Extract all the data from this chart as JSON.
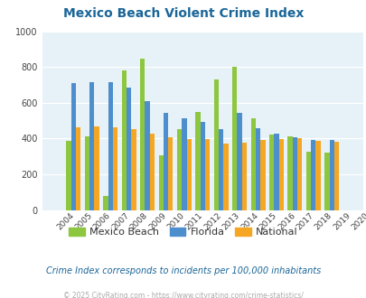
{
  "title": "Mexico Beach Violent Crime Index",
  "years": [
    2004,
    2005,
    2006,
    2007,
    2008,
    2009,
    2010,
    2011,
    2012,
    2013,
    2014,
    2015,
    2016,
    2017,
    2018,
    2019,
    2020
  ],
  "mexico_beach": [
    0,
    385,
    410,
    80,
    780,
    845,
    305,
    455,
    548,
    730,
    800,
    515,
    420,
    410,
    325,
    320,
    0
  ],
  "florida": [
    0,
    710,
    713,
    715,
    685,
    608,
    543,
    515,
    493,
    455,
    545,
    460,
    430,
    405,
    390,
    390,
    0
  ],
  "national": [
    0,
    465,
    470,
    465,
    455,
    430,
    405,
    395,
    395,
    370,
    375,
    390,
    395,
    400,
    385,
    380,
    0
  ],
  "mexico_beach_color": "#8dc63f",
  "florida_color": "#4d8fcc",
  "national_color": "#f5a623",
  "plot_bg_color": "#e6f2f7",
  "ylim": [
    0,
    1000
  ],
  "yticks": [
    0,
    200,
    400,
    600,
    800,
    1000
  ],
  "legend_labels": [
    "Mexico Beach",
    "Florida",
    "National"
  ],
  "subtitle": "Crime Index corresponds to incidents per 100,000 inhabitants",
  "footer": "© 2025 CityRating.com - https://www.cityrating.com/crime-statistics/",
  "title_color": "#1a6699",
  "subtitle_color": "#1a6699",
  "footer_color": "#aaaaaa"
}
